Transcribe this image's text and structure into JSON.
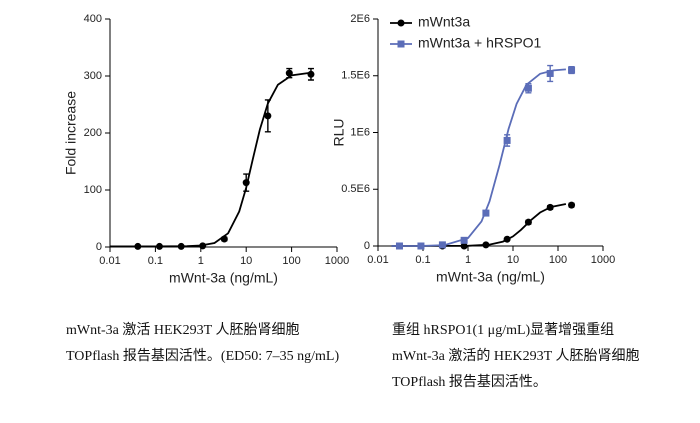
{
  "chart_data": [
    {
      "type": "scatter",
      "xlabel": "mWnt-3a (ng/mL)",
      "ylabel": "Fold increase",
      "xscale": "log",
      "xlim": [
        0.01,
        1000
      ],
      "xticks": [
        0.01,
        0.1,
        1,
        10,
        100,
        1000
      ],
      "ylim": [
        0,
        400
      ],
      "yticks": [
        0,
        100,
        200,
        300,
        400
      ],
      "x": [
        0.041,
        0.123,
        0.37,
        1.1,
        3.3,
        10,
        30,
        89,
        267
      ],
      "values": [
        1,
        1,
        1,
        2,
        14,
        113,
        230,
        305,
        303
      ],
      "errors": [
        0,
        0,
        0,
        0,
        3,
        15,
        28,
        8,
        10
      ],
      "color": "#000000",
      "marker": "circle",
      "fit": {
        "x": [
          0.01,
          0.1,
          0.5,
          1,
          2,
          4,
          7,
          10,
          14,
          20,
          30,
          50,
          100,
          300
        ],
        "values": [
          1,
          1.02,
          1.39,
          2.55,
          7.1,
          24.1,
          62.2,
          104,
          154,
          206.4,
          252,
          284.8,
          301.1,
          306.3
        ]
      }
    },
    {
      "type": "scatter",
      "xlabel": "mWnt-3a (ng/mL)",
      "ylabel": "RLU",
      "xscale": "log",
      "xlim": [
        0.01,
        1000
      ],
      "xticks": [
        0.01,
        0.1,
        1,
        10,
        100,
        1000
      ],
      "ylim": [
        0,
        2000000
      ],
      "yticks": [
        0,
        {
          "value": 500000,
          "label": "0.5E6"
        },
        {
          "value": 1000000,
          "label": "1E6"
        },
        {
          "value": 1500000,
          "label": "1.5E6"
        },
        {
          "value": 2000000,
          "label": "2E6"
        }
      ],
      "legend": "upper left",
      "x": [
        0.03,
        0.09,
        0.27,
        0.82,
        2.5,
        7.4,
        22,
        67,
        200
      ],
      "series": [
        {
          "name": "mWnt3a",
          "color": "#000000",
          "marker": "circle",
          "values": [
            0,
            0,
            0,
            0,
            10000,
            60000,
            210000,
            340000,
            360000
          ],
          "errors": [
            0,
            0,
            0,
            0,
            0,
            5000,
            15000,
            15000,
            15000
          ],
          "fit": {
            "x": [
              0.02,
              1,
              3,
              6,
              10,
              15,
              25,
              40,
              70,
              150
            ],
            "values": [
              0,
              1720,
              12100,
              39000,
              84800,
              141800,
              227700,
              295300,
              343900,
              370200
            ]
          }
        },
        {
          "name": "mWnt3a + hRSPO1",
          "color": "#5b6db8",
          "marker": "square",
          "values": [
            0,
            0,
            10000,
            50000,
            290000,
            930000,
            1390000,
            1520000,
            1550000
          ],
          "errors": [
            0,
            0,
            0,
            10000,
            20000,
            50000,
            40000,
            70000,
            30000
          ],
          "fit": {
            "x": [
              0.02,
              0.1,
              0.3,
              1,
              2,
              3,
              5,
              8,
              12,
              20,
              40,
              80,
              150
            ],
            "values": [
              0,
              1150,
              8300,
              69300,
              217000,
              392000,
              713000,
              1033000,
              1253000,
              1421000,
              1517000,
              1547000,
              1556000
            ]
          }
        }
      ]
    }
  ],
  "captions": [
    "mWnt-3a 激活 HEK293T 人胚胎肾细胞 TOPflash 报告基因活性。(ED50: 7–35 ng/mL)",
    "重组 hRSPO1(1 μg/mL)显著增强重组 mWnt-3a 激活的 HEK293T 人胚胎肾细胞 TOPflash 报告基因活性。"
  ]
}
